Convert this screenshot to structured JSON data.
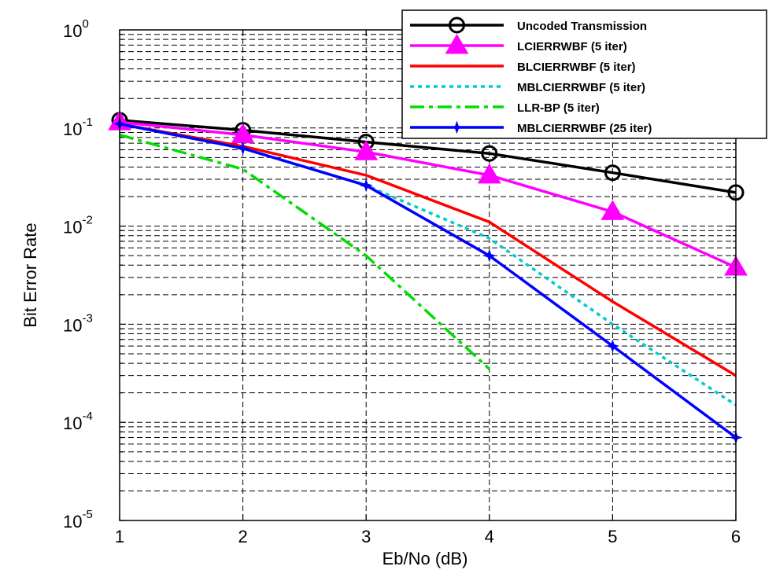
{
  "chart_data": {
    "type": "line",
    "title": "",
    "xlabel": "Eb/No (dB)",
    "ylabel": "Bit Error Rate",
    "xlim": [
      1,
      6
    ],
    "ylim": [
      1e-05,
      1
    ],
    "yscale": "log",
    "grid": true,
    "legend_position": "top-right",
    "x_ticks": [
      1,
      2,
      3,
      4,
      5,
      6
    ],
    "x_tick_labels": [
      "1",
      "2",
      "3",
      "4",
      "5",
      "6"
    ],
    "y_ticks": [
      {
        "value": 1,
        "mantissa": "10",
        "exp": "0"
      },
      {
        "value": 0.1,
        "mantissa": "10",
        "exp": "-1"
      },
      {
        "value": 0.01,
        "mantissa": "10",
        "exp": "-2"
      },
      {
        "value": 0.001,
        "mantissa": "10",
        "exp": "-3"
      },
      {
        "value": 0.0001,
        "mantissa": "10",
        "exp": "-4"
      },
      {
        "value": 1e-05,
        "mantissa": "10",
        "exp": "-5"
      }
    ],
    "series": [
      {
        "name": "Uncoded Transmission",
        "color": "#000000",
        "dash": "solid",
        "marker": "circle",
        "x": [
          1,
          2,
          3,
          4,
          5,
          6
        ],
        "y": [
          0.12,
          0.095,
          0.072,
          0.055,
          0.035,
          0.022
        ]
      },
      {
        "name": "LCIERRWBF (5 iter)",
        "color": "#ff00ff",
        "dash": "solid",
        "marker": "triangle",
        "x": [
          1,
          2,
          3,
          4,
          5,
          6
        ],
        "y": [
          0.115,
          0.085,
          0.057,
          0.033,
          0.014,
          0.0038
        ]
      },
      {
        "name": "BLCIERRWBF (5 iter)",
        "color": "#ff0000",
        "dash": "solid",
        "marker": "none",
        "x": [
          1,
          2,
          3,
          4,
          5,
          6
        ],
        "y": [
          0.11,
          0.065,
          0.033,
          0.011,
          0.0017,
          0.0003
        ]
      },
      {
        "name": "MBLCIERRWBF (5 iter)",
        "color": "#00cccc",
        "dash": "dotted",
        "marker": "none",
        "x": [
          1,
          2,
          3,
          4,
          5,
          6
        ],
        "y": [
          0.11,
          0.062,
          0.026,
          0.0075,
          0.001,
          0.00015
        ]
      },
      {
        "name": "LLR-BP (5 iter)",
        "color": "#00dd00",
        "dash": "dashdot",
        "marker": "none",
        "x": [
          1,
          2,
          3,
          4
        ],
        "y": [
          0.085,
          0.038,
          0.005,
          0.00035
        ]
      },
      {
        "name": "MBLCIERRWBF (25 iter)",
        "color": "#0000ff",
        "dash": "solid",
        "marker": "star",
        "x": [
          1,
          2,
          3,
          4,
          5,
          6
        ],
        "y": [
          0.11,
          0.062,
          0.026,
          0.005,
          0.0006,
          7e-05
        ]
      }
    ]
  }
}
